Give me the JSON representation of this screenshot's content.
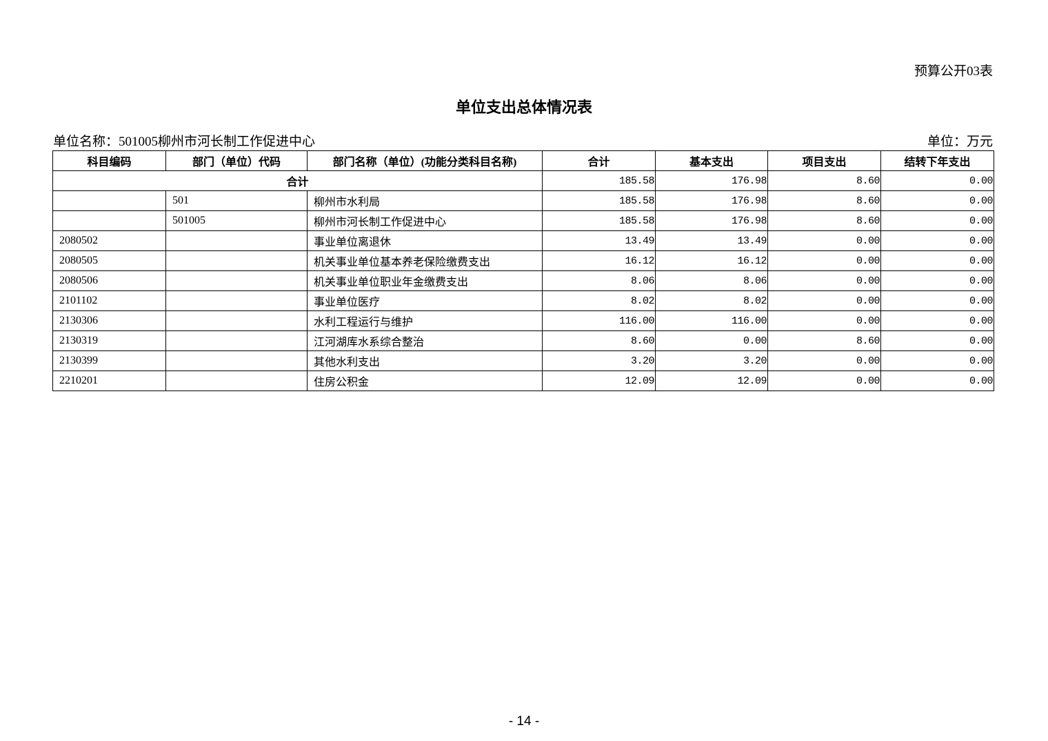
{
  "form_number": "预算公开03表",
  "title": "单位支出总体情况表",
  "unit_name": "单位名称：501005柳州市河长制工作促进中心",
  "unit": "单位：万元",
  "table": {
    "headers": [
      "科目编码",
      "部门（单位）代码",
      "部门名称（单位）(功能分类科目名称)",
      "合计",
      "基本支出",
      "项目支出",
      "结转下年支出"
    ],
    "total_row": {
      "label": "合计",
      "values": [
        "185.58",
        "176.98",
        "8.60",
        "0.00"
      ]
    },
    "rows": [
      [
        "",
        "501",
        "柳州市水利局",
        "185.58",
        "176.98",
        "8.60",
        "0.00"
      ],
      [
        "",
        "501005",
        "柳州市河长制工作促进中心",
        "185.58",
        "176.98",
        "8.60",
        "0.00"
      ],
      [
        "2080502",
        "",
        "事业单位离退休",
        "13.49",
        "13.49",
        "0.00",
        "0.00"
      ],
      [
        "2080505",
        "",
        "机关事业单位基本养老保险缴费支出",
        "16.12",
        "16.12",
        "0.00",
        "0.00"
      ],
      [
        "2080506",
        "",
        "机关事业单位职业年金缴费支出",
        "8.06",
        "8.06",
        "0.00",
        "0.00"
      ],
      [
        "2101102",
        "",
        "事业单位医疗",
        "8.02",
        "8.02",
        "0.00",
        "0.00"
      ],
      [
        "2130306",
        "",
        "水利工程运行与维护",
        "116.00",
        "116.00",
        "0.00",
        "0.00"
      ],
      [
        "2130319",
        "",
        "江河湖库水系综合整治",
        "8.60",
        "0.00",
        "8.60",
        "0.00"
      ],
      [
        "2130399",
        "",
        "其他水利支出",
        "3.20",
        "3.20",
        "0.00",
        "0.00"
      ],
      [
        "2210201",
        "",
        "住房公积金",
        "12.09",
        "12.09",
        "0.00",
        "0.00"
      ]
    ]
  },
  "page_number": "- 14 -"
}
